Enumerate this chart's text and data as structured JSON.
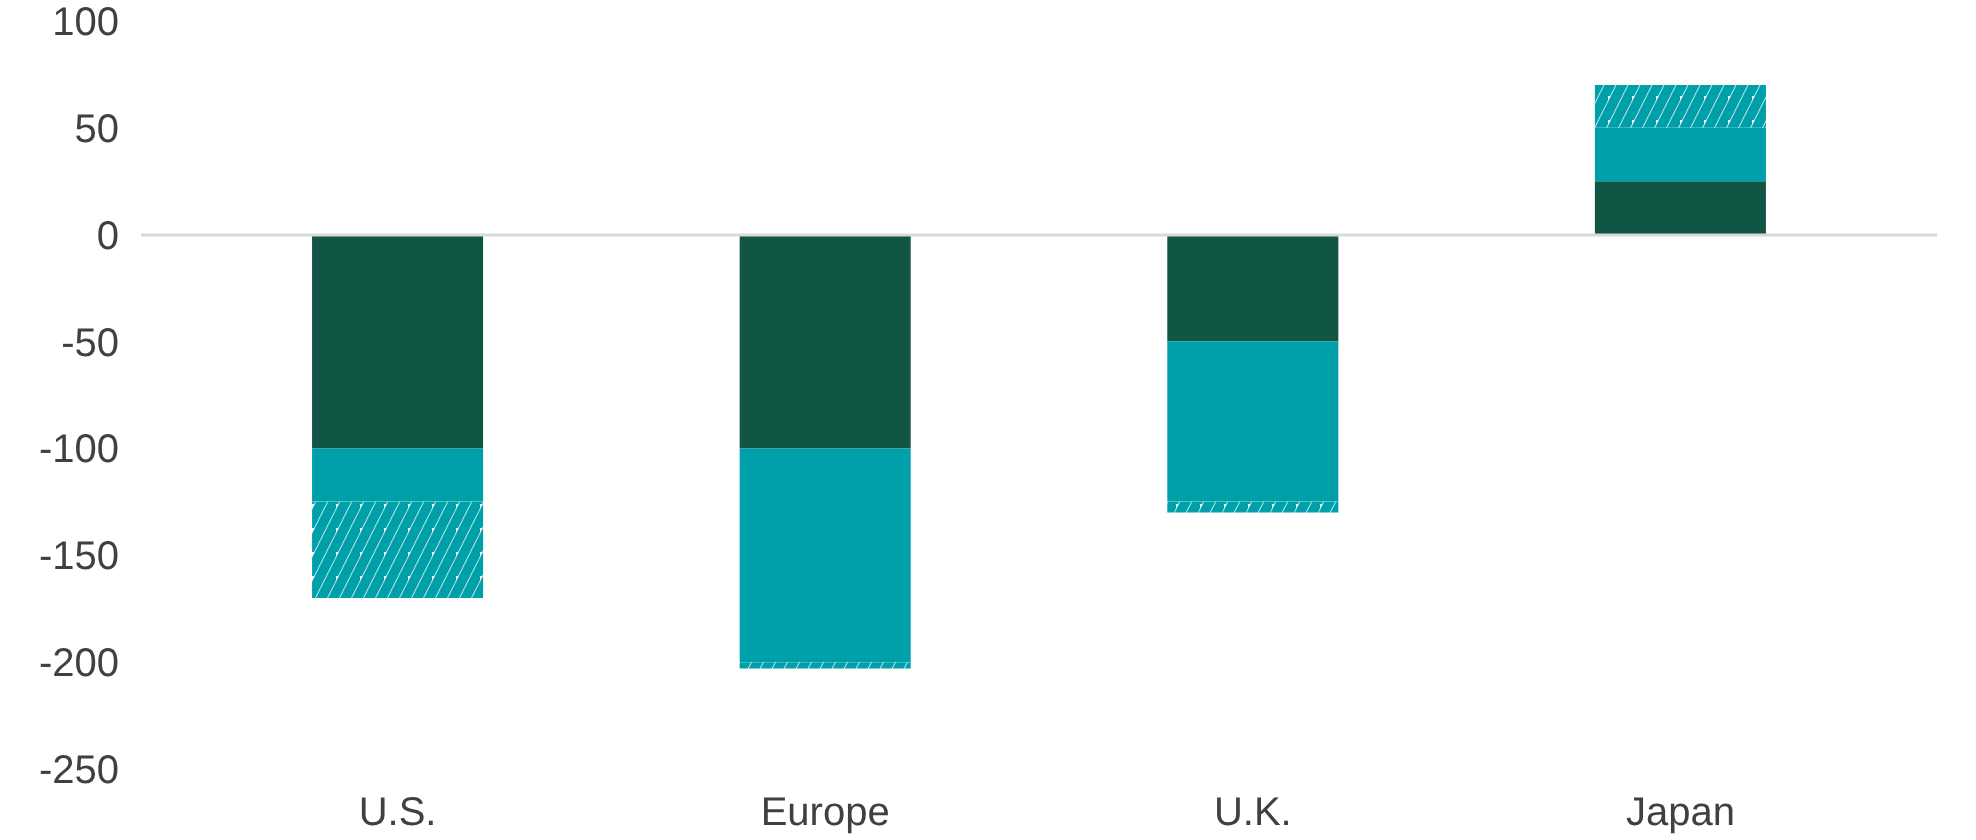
{
  "chart_data": {
    "type": "bar",
    "stacked": true,
    "categories": [
      "U.S.",
      "Europe",
      "U.K.",
      "Japan"
    ],
    "series": [
      {
        "color": "#115544",
        "values": [
          -100,
          -100,
          -50,
          25
        ]
      },
      {
        "color": "#00a0aa",
        "values": [
          -25,
          -100,
          -75,
          25
        ]
      },
      {
        "color": "#00a0aa",
        "values": [
          -45,
          -3,
          -5,
          20
        ]
      }
    ],
    "ylim": [
      -250,
      100
    ],
    "yticks": [
      -250,
      -200,
      -150,
      -100,
      -50,
      0,
      50,
      100
    ]
  }
}
